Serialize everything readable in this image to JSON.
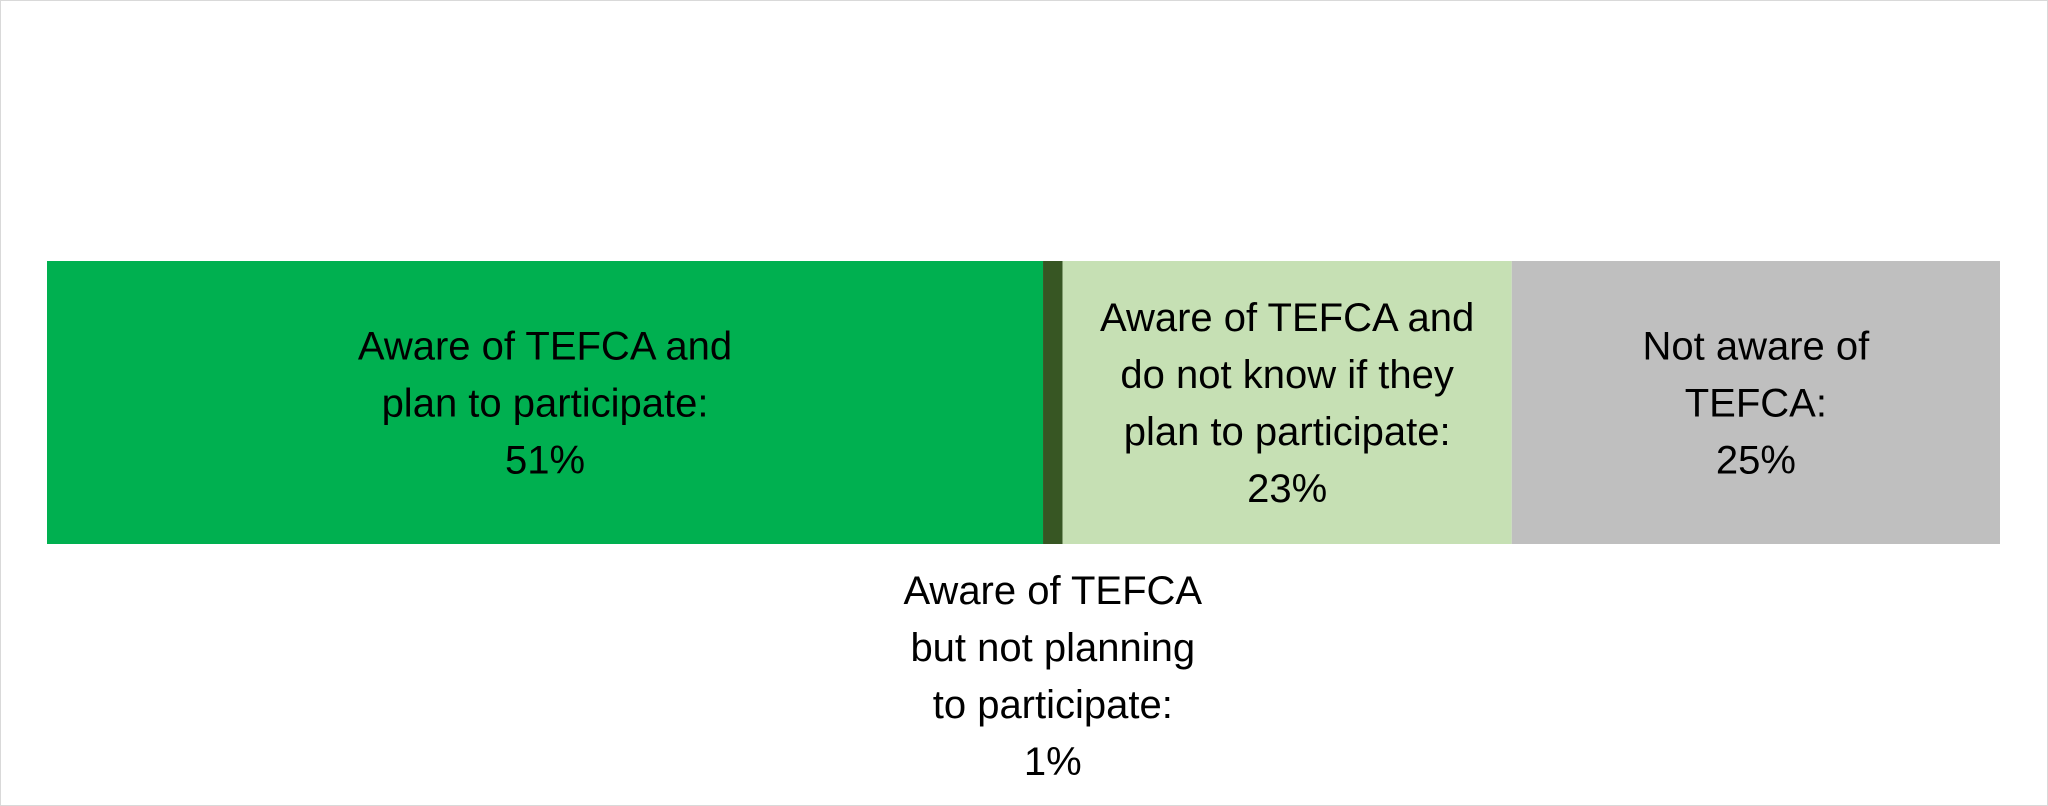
{
  "chart_data": {
    "type": "bar",
    "orientation": "horizontal",
    "stacked": true,
    "percent_of_total": true,
    "title": "",
    "xlabel": "",
    "ylabel": "",
    "xlim": [
      0,
      100
    ],
    "grid": false,
    "legend": "none",
    "series": [
      {
        "label_lines": [
          "Aware of TEFCA and",
          "plan to participate:",
          "51%"
        ],
        "value": 51,
        "color": "#00B050",
        "label_position": "inside"
      },
      {
        "label_lines": [
          "Aware of TEFCA",
          "but not planning",
          "to participate:",
          "1%"
        ],
        "value": 1,
        "color": "#375623",
        "label_position": "below"
      },
      {
        "label_lines": [
          "Aware of TEFCA and",
          "do not know if they",
          "plan to participate:",
          "23%"
        ],
        "value": 23,
        "color": "#C6E0B4",
        "label_position": "inside"
      },
      {
        "label_lines": [
          "Not aware of",
          "TEFCA:",
          "25%"
        ],
        "value": 25,
        "color": "#BFBFBF",
        "label_position": "inside"
      }
    ]
  }
}
